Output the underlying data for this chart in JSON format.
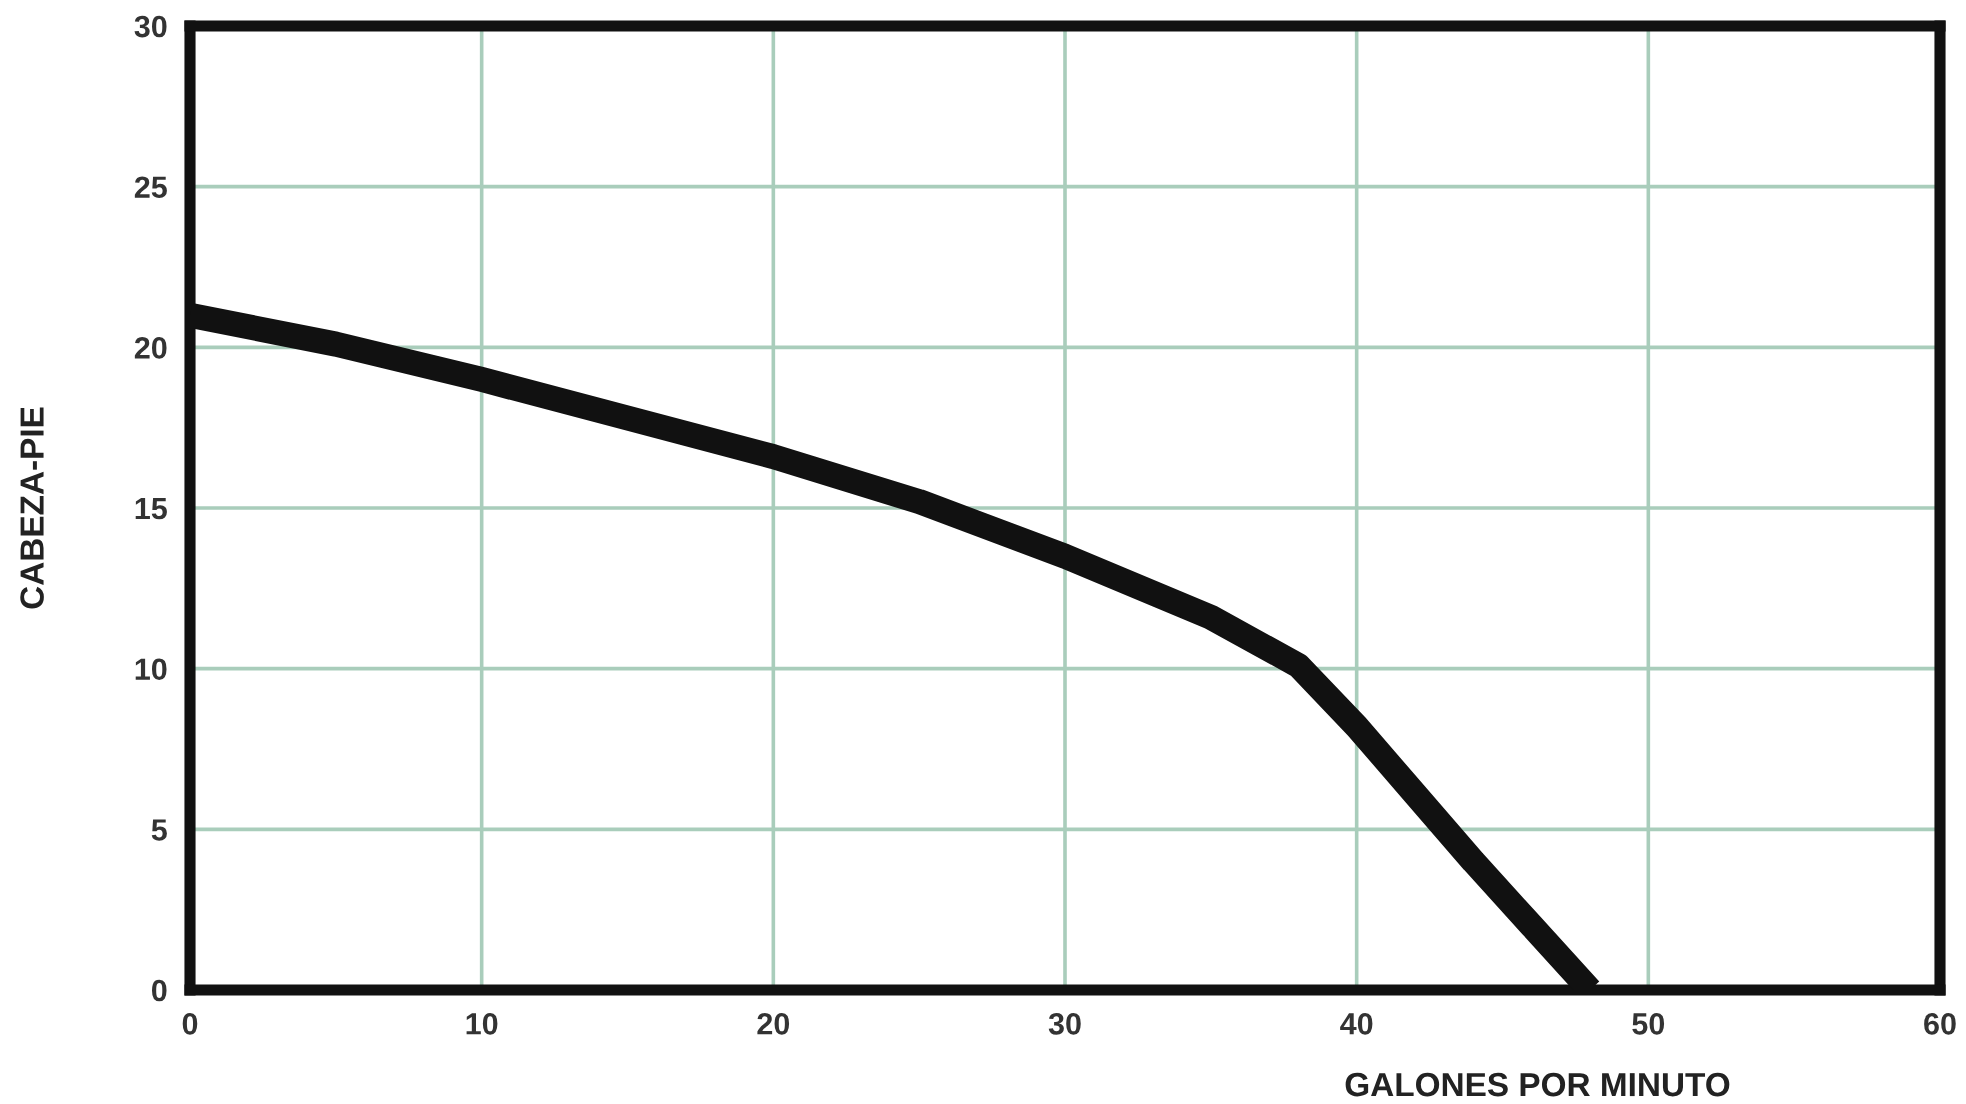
{
  "chart_data": {
    "type": "line",
    "xlabel": "GALONES POR MINUTO",
    "ylabel": "CABEZA-PIE",
    "x": [
      0,
      5,
      10,
      15,
      20,
      25,
      30,
      35,
      38,
      40,
      42,
      44,
      46,
      48
    ],
    "series": [
      {
        "color": "#111111",
        "values": [
          21,
          20.1,
          19,
          17.8,
          16.6,
          15.2,
          13.5,
          11.6,
          10.1,
          8.2,
          6.1,
          4.0,
          2.0,
          0
        ]
      }
    ],
    "xlim": [
      0,
      60
    ],
    "ylim": [
      0,
      30
    ],
    "xticks": [
      0,
      10,
      20,
      30,
      40,
      50,
      60
    ],
    "yticks": [
      0,
      5,
      10,
      15,
      20,
      25,
      30
    ],
    "grid": true,
    "marker": "none",
    "line_style": "solid"
  }
}
